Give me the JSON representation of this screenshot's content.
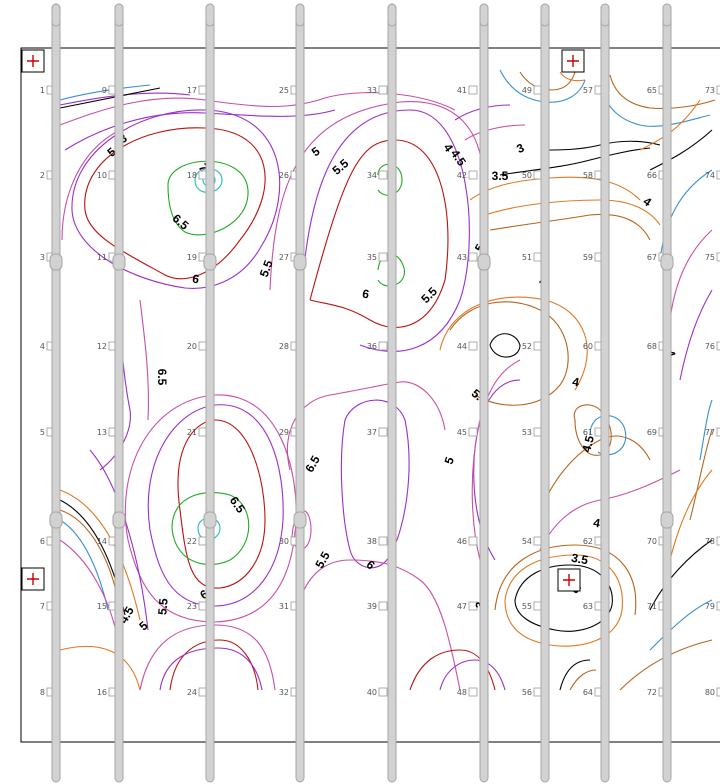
{
  "map": {
    "wells": [
      {
        "label": "1",
        "col": 0,
        "row": 0
      },
      {
        "label": "2",
        "col": 0,
        "row": 1
      },
      {
        "label": "3",
        "col": 0,
        "row": 2
      },
      {
        "label": "4",
        "col": 0,
        "row": 3
      },
      {
        "label": "5",
        "col": 0,
        "row": 4
      },
      {
        "label": "6",
        "col": 0,
        "row": 5
      },
      {
        "label": "7",
        "col": 0,
        "row": 6
      },
      {
        "label": "8",
        "col": 0,
        "row": 7
      },
      {
        "label": "9",
        "col": 1,
        "row": 0
      },
      {
        "label": "10",
        "col": 1,
        "row": 1
      },
      {
        "label": "11",
        "col": 1,
        "row": 2
      },
      {
        "label": "12",
        "col": 1,
        "row": 3
      },
      {
        "label": "13",
        "col": 1,
        "row": 4
      },
      {
        "label": "14",
        "col": 1,
        "row": 5
      },
      {
        "label": "15",
        "col": 1,
        "row": 6
      },
      {
        "label": "16",
        "col": 1,
        "row": 7
      },
      {
        "label": "17",
        "col": 2,
        "row": 0
      },
      {
        "label": "18",
        "col": 2,
        "row": 1
      },
      {
        "label": "19",
        "col": 2,
        "row": 2
      },
      {
        "label": "20",
        "col": 2,
        "row": 3
      },
      {
        "label": "21",
        "col": 2,
        "row": 4
      },
      {
        "label": "22",
        "col": 2,
        "row": 5
      },
      {
        "label": "23",
        "col": 2,
        "row": 6
      },
      {
        "label": "24",
        "col": 2,
        "row": 7
      },
      {
        "label": "25",
        "col": 3,
        "row": 0
      },
      {
        "label": "26",
        "col": 3,
        "row": 1
      },
      {
        "label": "27",
        "col": 3,
        "row": 2
      },
      {
        "label": "28",
        "col": 3,
        "row": 3
      },
      {
        "label": "29",
        "col": 3,
        "row": 4
      },
      {
        "label": "30",
        "col": 3,
        "row": 5
      },
      {
        "label": "31",
        "col": 3,
        "row": 6
      },
      {
        "label": "32",
        "col": 3,
        "row": 7
      },
      {
        "label": "33",
        "col": 4,
        "row": 0
      },
      {
        "label": "34",
        "col": 4,
        "row": 1
      },
      {
        "label": "35",
        "col": 4,
        "row": 2
      },
      {
        "label": "36",
        "col": 4,
        "row": 3
      },
      {
        "label": "37",
        "col": 4,
        "row": 4
      },
      {
        "label": "38",
        "col": 4,
        "row": 5
      },
      {
        "label": "39",
        "col": 4,
        "row": 6
      },
      {
        "label": "40",
        "col": 4,
        "row": 7
      },
      {
        "label": "41",
        "col": 5,
        "row": 0
      },
      {
        "label": "42",
        "col": 5,
        "row": 1
      },
      {
        "label": "43",
        "col": 5,
        "row": 2
      },
      {
        "label": "44",
        "col": 5,
        "row": 3
      },
      {
        "label": "45",
        "col": 5,
        "row": 4
      },
      {
        "label": "46",
        "col": 5,
        "row": 5
      },
      {
        "label": "47",
        "col": 5,
        "row": 6
      },
      {
        "label": "48",
        "col": 5,
        "row": 7
      },
      {
        "label": "49",
        "col": 6,
        "row": 0
      },
      {
        "label": "50",
        "col": 6,
        "row": 1
      },
      {
        "label": "51",
        "col": 6,
        "row": 2
      },
      {
        "label": "52",
        "col": 6,
        "row": 3
      },
      {
        "label": "53",
        "col": 6,
        "row": 4
      },
      {
        "label": "54",
        "col": 6,
        "row": 5
      },
      {
        "label": "55",
        "col": 6,
        "row": 6
      },
      {
        "label": "56",
        "col": 6,
        "row": 7
      },
      {
        "label": "57",
        "col": 7,
        "row": 0
      },
      {
        "label": "58",
        "col": 7,
        "row": 1
      },
      {
        "label": "59",
        "col": 7,
        "row": 2
      },
      {
        "label": "60",
        "col": 7,
        "row": 3
      },
      {
        "label": "61",
        "col": 7,
        "row": 4
      },
      {
        "label": "62",
        "col": 7,
        "row": 5
      },
      {
        "label": "63",
        "col": 7,
        "row": 6
      },
      {
        "label": "64",
        "col": 7,
        "row": 7
      },
      {
        "label": "65",
        "col": 8,
        "row": 0
      },
      {
        "label": "66",
        "col": 8,
        "row": 1
      },
      {
        "label": "67",
        "col": 8,
        "row": 2
      },
      {
        "label": "68",
        "col": 8,
        "row": 3
      },
      {
        "label": "69",
        "col": 8,
        "row": 4
      },
      {
        "label": "70",
        "col": 8,
        "row": 5
      },
      {
        "label": "71",
        "col": 8,
        "row": 6
      },
      {
        "label": "72",
        "col": 8,
        "row": 7
      },
      {
        "label": "73",
        "col": 9,
        "row": 0
      },
      {
        "label": "74",
        "col": 9,
        "row": 1
      },
      {
        "label": "75",
        "col": 9,
        "row": 2
      },
      {
        "label": "76",
        "col": 9,
        "row": 3
      },
      {
        "label": "77",
        "col": 9,
        "row": 4
      },
      {
        "label": "78",
        "col": 9,
        "row": 5
      },
      {
        "label": "79",
        "col": 9,
        "row": 6
      },
      {
        "label": "80",
        "col": 9,
        "row": 7
      }
    ],
    "contour_labels": [
      {
        "text": "5.5"
      },
      {
        "text": "3"
      },
      {
        "text": "7"
      },
      {
        "text": "6.5"
      },
      {
        "text": "5"
      },
      {
        "text": "5.5"
      },
      {
        "text": "4.5"
      },
      {
        "text": "4"
      },
      {
        "text": "3.5"
      },
      {
        "text": "3"
      },
      {
        "text": "4"
      },
      {
        "text": "5.5"
      },
      {
        "text": "6"
      },
      {
        "text": "6"
      },
      {
        "text": "5.5"
      },
      {
        "text": "5"
      },
      {
        "text": "4"
      },
      {
        "text": "6.5"
      },
      {
        "text": "5"
      },
      {
        "text": "4"
      },
      {
        "text": "4.5"
      },
      {
        "text": "4"
      },
      {
        "text": "5"
      },
      {
        "text": "5.5"
      },
      {
        "text": "6.5"
      },
      {
        "text": "6.5"
      },
      {
        "text": "5.5"
      },
      {
        "text": "6"
      },
      {
        "text": "6"
      },
      {
        "text": "4"
      },
      {
        "text": "3.5"
      },
      {
        "text": "4.5"
      },
      {
        "text": "5"
      },
      {
        "text": "5.5"
      },
      {
        "text": "3"
      },
      {
        "text": "3"
      }
    ],
    "colors": {
      "frame": "#000000",
      "marker": "#cc0000",
      "bar_fill": "#d2d2d2",
      "bar_stroke": "#a6a6a6",
      "c3": "#000000",
      "c3_5": "#e07820",
      "c4": "#b5651d",
      "c4_5": "#3a8fd0",
      "c5": "#c84fa6",
      "c5_5": "#9a2fc8",
      "c6": "#bb1111",
      "c6_5": "#22aa22",
      "c7": "#22bbbb"
    }
  }
}
